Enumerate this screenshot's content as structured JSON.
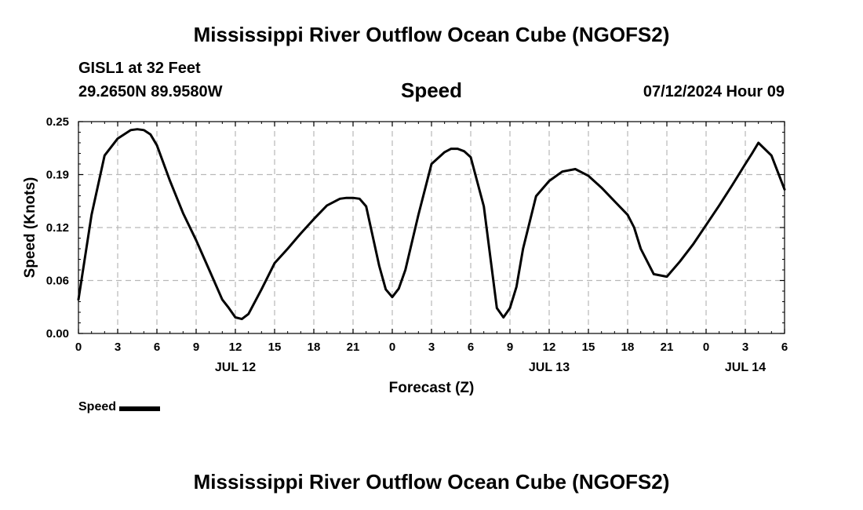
{
  "header": {
    "title": "Mississippi River Outflow Ocean Cube (NGOFS2)",
    "station": "GISL1 at 32 Feet",
    "coords": "29.2650N  89.9580W",
    "variable": "Speed",
    "datetime": "07/12/2024 Hour 09"
  },
  "footer": {
    "title": "Mississippi River Outflow Ocean Cube (NGOFS2)"
  },
  "legend": {
    "label": "Speed",
    "color": "#000000"
  },
  "chart_data": {
    "type": "line",
    "title": "Speed",
    "xlabel": "Forecast (Z)",
    "ylabel": "Speed (Knots)",
    "xlim": [
      0,
      54
    ],
    "ylim": [
      0,
      0.25
    ],
    "grid": true,
    "legend_position": "bottom-left",
    "x_tick_values": [
      0,
      3,
      6,
      9,
      12,
      15,
      18,
      21,
      24,
      27,
      30,
      33,
      36,
      39,
      42,
      45,
      48,
      51,
      54
    ],
    "x_tick_labels": [
      "0",
      "3",
      "6",
      "9",
      "12",
      "15",
      "18",
      "21",
      "0",
      "3",
      "6",
      "9",
      "12",
      "15",
      "18",
      "21",
      "0",
      "3",
      "6"
    ],
    "y_tick_values": [
      0,
      0.0625,
      0.125,
      0.1875,
      0.25
    ],
    "y_tick_labels": [
      "0.00",
      "0.06",
      "0.12",
      "0.19",
      "0.25"
    ],
    "date_labels": [
      {
        "x": 12,
        "label": "JUL 12"
      },
      {
        "x": 36,
        "label": "JUL 13"
      },
      {
        "x": 51,
        "label": "JUL 14"
      }
    ],
    "series": [
      {
        "name": "Speed",
        "color": "#000000",
        "x": [
          0,
          1,
          2,
          3,
          4,
          4.5,
          5,
          5.5,
          6,
          7,
          8,
          9,
          10,
          11,
          11.5,
          12,
          12.5,
          13,
          14,
          15,
          16,
          17,
          18,
          19,
          20,
          20.5,
          21,
          21.5,
          22,
          23,
          23.5,
          24,
          24.5,
          25,
          26,
          27,
          28,
          28.5,
          29,
          29.5,
          30,
          31,
          32,
          32.5,
          33,
          33.5,
          34,
          35,
          36,
          37,
          38,
          39,
          40,
          41,
          42,
          42.5,
          43,
          44,
          45,
          46,
          47,
          48,
          49,
          50,
          51,
          51.5,
          52,
          53,
          54
        ],
        "y": [
          0.04,
          0.14,
          0.21,
          0.23,
          0.24,
          0.241,
          0.24,
          0.235,
          0.222,
          0.18,
          0.142,
          0.11,
          0.075,
          0.04,
          0.03,
          0.019,
          0.017,
          0.023,
          0.052,
          0.083,
          0.1,
          0.118,
          0.135,
          0.151,
          0.159,
          0.16,
          0.16,
          0.159,
          0.15,
          0.08,
          0.052,
          0.043,
          0.053,
          0.075,
          0.14,
          0.2,
          0.214,
          0.218,
          0.218,
          0.215,
          0.208,
          0.15,
          0.03,
          0.019,
          0.03,
          0.055,
          0.1,
          0.162,
          0.18,
          0.191,
          0.194,
          0.186,
          0.172,
          0.156,
          0.14,
          0.125,
          0.1,
          0.07,
          0.067,
          0.085,
          0.105,
          0.128,
          0.151,
          0.175,
          0.2,
          0.212,
          0.225,
          0.21,
          0.17
        ]
      }
    ]
  }
}
